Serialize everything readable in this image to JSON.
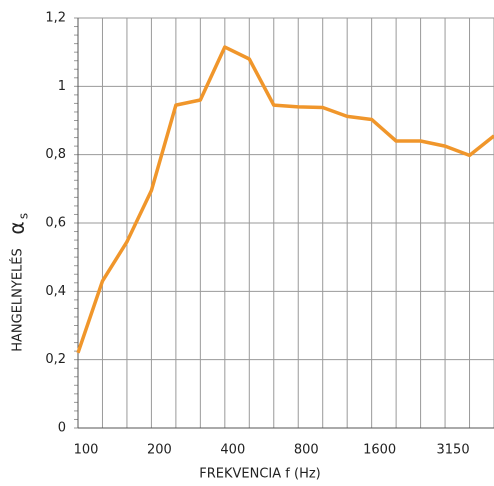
{
  "chart_data": {
    "type": "line",
    "x_label": "FREKVENCIA f (Hz)",
    "y_label": "HANGELNYELÉS",
    "y_symbol": "α",
    "y_symbol_sub": "s",
    "categories": [
      "100",
      null,
      null,
      "200",
      null,
      null,
      "400",
      null,
      null,
      "800",
      null,
      null,
      "1600",
      null,
      null,
      "3150",
      null,
      null
    ],
    "series": [
      {
        "color": "#f0962b",
        "values": [
          0.22,
          0.43,
          0.545,
          0.695,
          0.945,
          0.96,
          1.115,
          1.08,
          0.945,
          0.94,
          0.938,
          0.912,
          0.903,
          0.84,
          0.84,
          0.825,
          0.798,
          0.855
        ]
      }
    ],
    "ylim": [
      0,
      1.2
    ],
    "yticks": [
      0,
      {
        "value": 0.2,
        "label": "0,2"
      },
      {
        "value": 0.4,
        "label": "0,4"
      },
      {
        "value": 0.6,
        "label": "0,6"
      },
      {
        "value": 0.8,
        "label": "0,8"
      },
      1,
      {
        "value": 1.2,
        "label": "1,2"
      }
    ],
    "grid": true
  }
}
